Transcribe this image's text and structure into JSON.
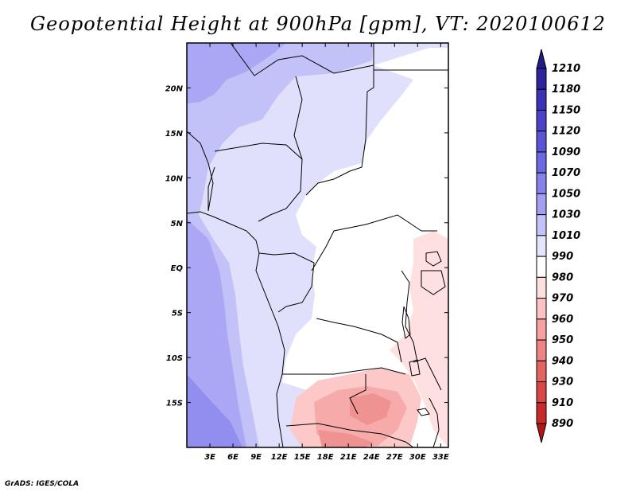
{
  "title": "Geopotential Height at 900hPa [gpm], VT: 2020100612",
  "credit": "GrADS: IGES/COLA",
  "map": {
    "lon_range": [
      0,
      34
    ],
    "lat_range": [
      -20,
      25
    ],
    "lon_ticks": [
      "3E",
      "6E",
      "9E",
      "12E",
      "15E",
      "18E",
      "21E",
      "24E",
      "27E",
      "30E",
      "33E"
    ],
    "lat_ticks": [
      "20N",
      "15N",
      "10N",
      "5N",
      "EQ",
      "5S",
      "10S",
      "15S"
    ]
  },
  "colorbar": {
    "labels": [
      "1210",
      "1180",
      "1150",
      "1120",
      "1090",
      "1070",
      "1050",
      "1030",
      "1010",
      "990",
      "980",
      "970",
      "960",
      "950",
      "940",
      "930",
      "910",
      "890"
    ],
    "colors": [
      "#231c84",
      "#2e259e",
      "#3b33b6",
      "#4a43c8",
      "#5a55d6",
      "#6d69e0",
      "#8682ea",
      "#a3a0f2",
      "#c4c3f8",
      "#e4e4fd",
      "#ffffff",
      "#ffe0e0",
      "#fcc2c2",
      "#f6a2a2",
      "#ee8383",
      "#e46464",
      "#d84646",
      "#c82b2b",
      "#b01818"
    ]
  }
}
